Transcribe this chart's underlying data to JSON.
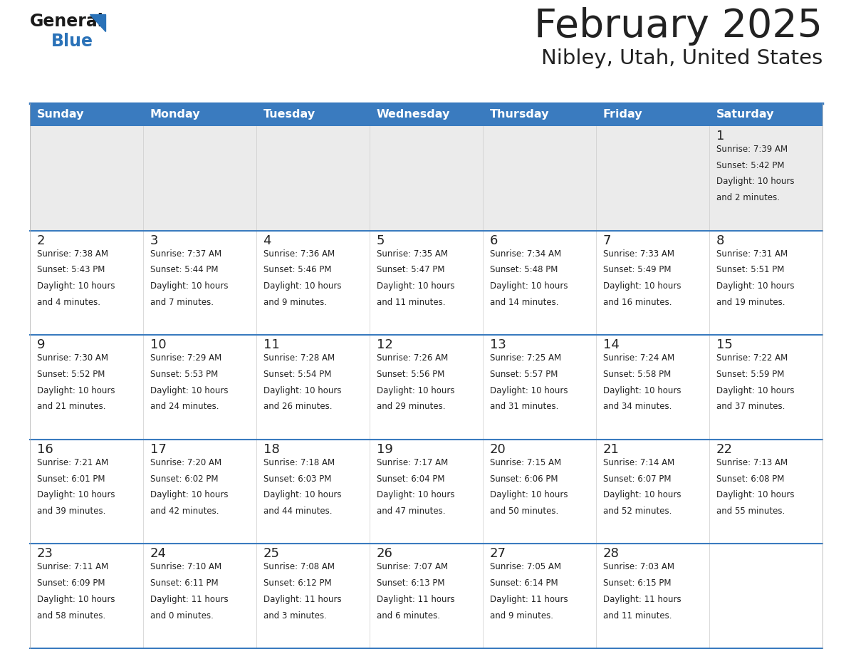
{
  "title": "February 2025",
  "subtitle": "Nibley, Utah, United States",
  "header_color": "#3a7bbf",
  "header_text_color": "#ffffff",
  "row0_bg": "#ebebeb",
  "row_bg": "#ffffff",
  "separator_color": "#3a7bbf",
  "outer_border_color": "#3a7bbf",
  "text_color": "#222222",
  "days_of_week": [
    "Sunday",
    "Monday",
    "Tuesday",
    "Wednesday",
    "Thursday",
    "Friday",
    "Saturday"
  ],
  "calendar_data": [
    [
      null,
      null,
      null,
      null,
      null,
      null,
      {
        "day": "1",
        "sunrise": "7:39 AM",
        "sunset": "5:42 PM",
        "daylight": "10 hours\nand 2 minutes."
      }
    ],
    [
      {
        "day": "2",
        "sunrise": "7:38 AM",
        "sunset": "5:43 PM",
        "daylight": "10 hours\nand 4 minutes."
      },
      {
        "day": "3",
        "sunrise": "7:37 AM",
        "sunset": "5:44 PM",
        "daylight": "10 hours\nand 7 minutes."
      },
      {
        "day": "4",
        "sunrise": "7:36 AM",
        "sunset": "5:46 PM",
        "daylight": "10 hours\nand 9 minutes."
      },
      {
        "day": "5",
        "sunrise": "7:35 AM",
        "sunset": "5:47 PM",
        "daylight": "10 hours\nand 11 minutes."
      },
      {
        "day": "6",
        "sunrise": "7:34 AM",
        "sunset": "5:48 PM",
        "daylight": "10 hours\nand 14 minutes."
      },
      {
        "day": "7",
        "sunrise": "7:33 AM",
        "sunset": "5:49 PM",
        "daylight": "10 hours\nand 16 minutes."
      },
      {
        "day": "8",
        "sunrise": "7:31 AM",
        "sunset": "5:51 PM",
        "daylight": "10 hours\nand 19 minutes."
      }
    ],
    [
      {
        "day": "9",
        "sunrise": "7:30 AM",
        "sunset": "5:52 PM",
        "daylight": "10 hours\nand 21 minutes."
      },
      {
        "day": "10",
        "sunrise": "7:29 AM",
        "sunset": "5:53 PM",
        "daylight": "10 hours\nand 24 minutes."
      },
      {
        "day": "11",
        "sunrise": "7:28 AM",
        "sunset": "5:54 PM",
        "daylight": "10 hours\nand 26 minutes."
      },
      {
        "day": "12",
        "sunrise": "7:26 AM",
        "sunset": "5:56 PM",
        "daylight": "10 hours\nand 29 minutes."
      },
      {
        "day": "13",
        "sunrise": "7:25 AM",
        "sunset": "5:57 PM",
        "daylight": "10 hours\nand 31 minutes."
      },
      {
        "day": "14",
        "sunrise": "7:24 AM",
        "sunset": "5:58 PM",
        "daylight": "10 hours\nand 34 minutes."
      },
      {
        "day": "15",
        "sunrise": "7:22 AM",
        "sunset": "5:59 PM",
        "daylight": "10 hours\nand 37 minutes."
      }
    ],
    [
      {
        "day": "16",
        "sunrise": "7:21 AM",
        "sunset": "6:01 PM",
        "daylight": "10 hours\nand 39 minutes."
      },
      {
        "day": "17",
        "sunrise": "7:20 AM",
        "sunset": "6:02 PM",
        "daylight": "10 hours\nand 42 minutes."
      },
      {
        "day": "18",
        "sunrise": "7:18 AM",
        "sunset": "6:03 PM",
        "daylight": "10 hours\nand 44 minutes."
      },
      {
        "day": "19",
        "sunrise": "7:17 AM",
        "sunset": "6:04 PM",
        "daylight": "10 hours\nand 47 minutes."
      },
      {
        "day": "20",
        "sunrise": "7:15 AM",
        "sunset": "6:06 PM",
        "daylight": "10 hours\nand 50 minutes."
      },
      {
        "day": "21",
        "sunrise": "7:14 AM",
        "sunset": "6:07 PM",
        "daylight": "10 hours\nand 52 minutes."
      },
      {
        "day": "22",
        "sunrise": "7:13 AM",
        "sunset": "6:08 PM",
        "daylight": "10 hours\nand 55 minutes."
      }
    ],
    [
      {
        "day": "23",
        "sunrise": "7:11 AM",
        "sunset": "6:09 PM",
        "daylight": "10 hours\nand 58 minutes."
      },
      {
        "day": "24",
        "sunrise": "7:10 AM",
        "sunset": "6:11 PM",
        "daylight": "11 hours\nand 0 minutes."
      },
      {
        "day": "25",
        "sunrise": "7:08 AM",
        "sunset": "6:12 PM",
        "daylight": "11 hours\nand 3 minutes."
      },
      {
        "day": "26",
        "sunrise": "7:07 AM",
        "sunset": "6:13 PM",
        "daylight": "11 hours\nand 6 minutes."
      },
      {
        "day": "27",
        "sunrise": "7:05 AM",
        "sunset": "6:14 PM",
        "daylight": "11 hours\nand 9 minutes."
      },
      {
        "day": "28",
        "sunrise": "7:03 AM",
        "sunset": "6:15 PM",
        "daylight": "11 hours\nand 11 minutes."
      },
      null
    ]
  ],
  "logo_general_color": "#1a1a1a",
  "logo_blue_color": "#2a72b8",
  "logo_triangle_color": "#2a72b8"
}
